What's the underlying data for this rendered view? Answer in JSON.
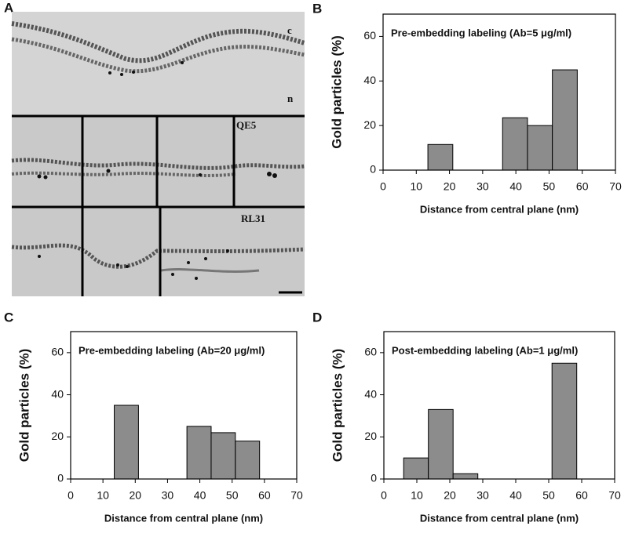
{
  "micrograph": {
    "panel": "A",
    "labels": [
      "c",
      "n",
      "QE5",
      "RL31"
    ]
  },
  "chart_data": [
    {
      "type": "histogram",
      "panel": "B",
      "title": "Pre-embedding labeling (Ab=5 μg/ml)",
      "xlabel": "Distance from central plane (nm)",
      "ylabel": "Gold particles (%)",
      "bins": [
        6,
        13.5,
        21,
        28.5,
        36,
        43.5,
        51,
        58.5
      ],
      "values": [
        0,
        11.5,
        0,
        0,
        23.5,
        20,
        45
      ],
      "color": "#8c8c8c",
      "xlim": [
        0,
        70
      ],
      "xticks": [
        0,
        10,
        20,
        30,
        40,
        50,
        60,
        70
      ],
      "ylim": [
        0,
        70
      ],
      "yticks": [
        0,
        20,
        40,
        60
      ]
    },
    {
      "type": "histogram",
      "panel": "C",
      "title": "Pre-embedding labeling (Ab=20 μg/ml)",
      "xlabel": "Distance from central plane (nm)",
      "ylabel": "Gold particles (%)",
      "bins": [
        6,
        13.5,
        21,
        28.5,
        36,
        43.5,
        51,
        58.5
      ],
      "values": [
        0,
        35,
        0,
        0,
        25,
        22,
        18
      ],
      "color": "#8c8c8c",
      "xlim": [
        0,
        70
      ],
      "xticks": [
        0,
        10,
        20,
        30,
        40,
        50,
        60,
        70
      ],
      "ylim": [
        0,
        70
      ],
      "yticks": [
        0,
        20,
        40,
        60
      ]
    },
    {
      "type": "histogram",
      "panel": "D",
      "title": "Post-embedding labeling (Ab=1 μg/ml)",
      "xlabel": "Distance from central plane (nm)",
      "ylabel": "Gold particles (%)",
      "bins": [
        6,
        13.5,
        21,
        28.5,
        36,
        43.5,
        51,
        58.5
      ],
      "values": [
        10,
        33,
        2.5,
        0,
        0,
        0,
        55
      ],
      "color": "#8c8c8c",
      "xlim": [
        0,
        70
      ],
      "xticks": [
        0,
        10,
        20,
        30,
        40,
        50,
        60,
        70
      ],
      "ylim": [
        0,
        70
      ],
      "yticks": [
        0,
        20,
        40,
        60
      ]
    }
  ]
}
